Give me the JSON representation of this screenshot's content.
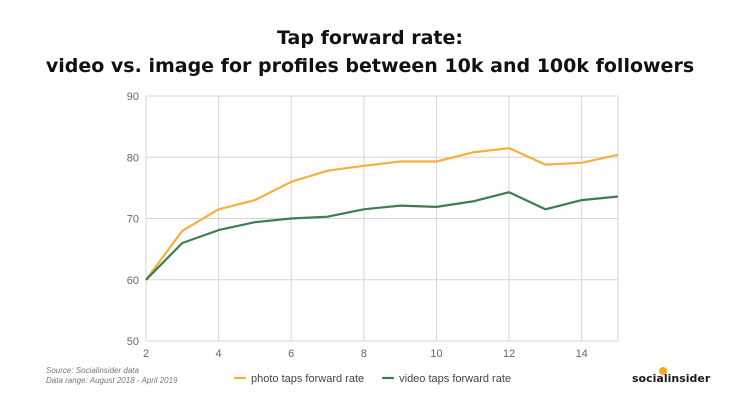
{
  "chart_data": {
    "type": "line",
    "title": "Tap forward rate:",
    "subtitle": "video vs. image for profiles between 10k and 100k followers",
    "xlabel": "",
    "ylabel": "",
    "x": [
      2,
      3,
      4,
      5,
      6,
      7,
      8,
      9,
      10,
      11,
      12,
      13,
      14,
      15
    ],
    "xlim": [
      2,
      15
    ],
    "ylim": [
      50,
      90
    ],
    "xticks": [
      2,
      4,
      6,
      8,
      10,
      12,
      14
    ],
    "yticks": [
      50,
      60,
      70,
      80,
      90
    ],
    "grid": true,
    "legend": "bottom",
    "series": [
      {
        "name": "photo taps forward rate",
        "color": "#f5b041",
        "values": [
          60,
          68,
          71.5,
          73,
          76,
          77.8,
          78.6,
          79.3,
          79.3,
          80.8,
          81.5,
          78.8,
          79.1,
          80.4
        ]
      },
      {
        "name": "video taps forward rate",
        "color": "#3d7d50",
        "values": [
          60,
          66,
          68.1,
          69.4,
          70,
          70.3,
          71.5,
          72.1,
          71.9,
          72.8,
          74.3,
          71.5,
          73,
          73.6
        ]
      }
    ]
  },
  "footer": {
    "source": "Source: Socialinsider data",
    "range": "Data range: August 2018 - April 2019",
    "logo": "socialinsider"
  }
}
